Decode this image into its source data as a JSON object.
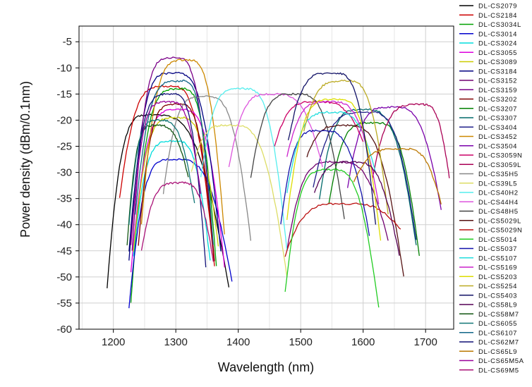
{
  "chart_data": {
    "type": "line",
    "title": "",
    "xlabel": "Wavelength (nm)",
    "ylabel": "Power density (dBm/0.1nm)",
    "xlim": [
      1145,
      1745
    ],
    "ylim": [
      -60,
      -2
    ],
    "xticks": [
      1200,
      1300,
      1400,
      1500,
      1600,
      1700
    ],
    "yticks": [
      -5,
      -10,
      -15,
      -20,
      -25,
      -30,
      -35,
      -40,
      -45,
      -50,
      -55,
      -60
    ],
    "grid": true,
    "legend_position": "right",
    "series": [
      {
        "name": "DL-CS2079",
        "color": "#000000",
        "peak_x": 1265,
        "peak_y": -19,
        "start_x": 1190,
        "start_y": -52,
        "end_x": 1385,
        "end_y": -52
      },
      {
        "name": "DL-CS2184",
        "color": "#cc0000",
        "peak_x": 1292,
        "peak_y": -13.5,
        "start_x": 1210,
        "start_y": -35,
        "end_x": 1362,
        "end_y": -48
      },
      {
        "name": "DL-CS3034L",
        "color": "#00a000",
        "peak_x": 1310,
        "peak_y": -14,
        "start_x": 1228,
        "start_y": -55,
        "end_x": 1365,
        "end_y": -48
      },
      {
        "name": "DL-CS3014",
        "color": "#0000cc",
        "peak_x": 1302,
        "peak_y": -27.5,
        "start_x": 1225,
        "start_y": -56,
        "end_x": 1390,
        "end_y": -51
      },
      {
        "name": "DL-CS3024",
        "color": "#00dddd",
        "peak_x": 1300,
        "peak_y": -24,
        "start_x": 1232,
        "start_y": -46,
        "end_x": 1355,
        "end_y": -47
      },
      {
        "name": "DL-CS3055",
        "color": "#dd00dd",
        "peak_x": 1310,
        "peak_y": -18,
        "start_x": 1228,
        "start_y": -49,
        "end_x": 1378,
        "end_y": -48
      },
      {
        "name": "DL-CS3089",
        "color": "#cccc00",
        "peak_x": 1305,
        "peak_y": -19.5,
        "start_x": 1232,
        "start_y": -45,
        "end_x": 1368,
        "end_y": -44
      },
      {
        "name": "DL-CS3184",
        "color": "#000080",
        "peak_x": 1300,
        "peak_y": -11,
        "start_x": 1225,
        "start_y": -47,
        "end_x": 1372,
        "end_y": -45
      },
      {
        "name": "DL-CS3152",
        "color": "#700070",
        "peak_x": 1560,
        "peak_y": -28,
        "start_x": 1478,
        "start_y": -45,
        "end_x": 1640,
        "end_y": -43
      },
      {
        "name": "DL-CS3159",
        "color": "#7a0088",
        "peak_x": 1300,
        "peak_y": -8,
        "start_x": 1230,
        "start_y": -45,
        "end_x": 1360,
        "end_y": -45
      },
      {
        "name": "DL-CS3202",
        "color": "#800000",
        "peak_x": 1305,
        "peak_y": -17,
        "start_x": 1240,
        "start_y": -44,
        "end_x": 1362,
        "end_y": -47
      },
      {
        "name": "DL-CS3207",
        "color": "#008000",
        "peak_x": 1620,
        "peak_y": -20.5,
        "start_x": 1545,
        "start_y": -36,
        "end_x": 1690,
        "end_y": -46
      },
      {
        "name": "DL-CS3307",
        "color": "#006a6a",
        "peak_x": 1605,
        "peak_y": -18,
        "start_x": 1530,
        "start_y": -35,
        "end_x": 1685,
        "end_y": -44
      },
      {
        "name": "DL-CS3404",
        "color": "#20208a",
        "peak_x": 1610,
        "peak_y": -18.5,
        "start_x": 1520,
        "start_y": -33,
        "end_x": 1685,
        "end_y": -43
      },
      {
        "name": "DL-CS3452",
        "color": "#cc8800",
        "peak_x": 1320,
        "peak_y": -8.5,
        "start_x": 1245,
        "start_y": -40,
        "end_x": 1378,
        "end_y": -42
      },
      {
        "name": "DL-CS3504",
        "color": "#7a00aa",
        "peak_x": 1650,
        "peak_y": -17.5,
        "start_x": 1575,
        "start_y": -33,
        "end_x": 1725,
        "end_y": -37
      },
      {
        "name": "DL-CS3059N",
        "color": "#cc0066",
        "peak_x": 1530,
        "peak_y": -16.5,
        "start_x": 1458,
        "start_y": -25,
        "end_x": 1600,
        "end_y": -24
      },
      {
        "name": "DL-CS3059L",
        "color": "#aa0055",
        "peak_x": 1695,
        "peak_y": -17,
        "start_x": 1615,
        "start_y": -31,
        "end_x": 1738,
        "end_y": -31
      },
      {
        "name": "DL-CS35H5",
        "color": "#888888",
        "peak_x": 1350,
        "peak_y": -15.5,
        "start_x": 1280,
        "start_y": -34,
        "end_x": 1420,
        "end_y": -43
      },
      {
        "name": "DL-CS39L5",
        "color": "#dddd66",
        "peak_x": 1390,
        "peak_y": -21,
        "start_x": 1325,
        "start_y": -30,
        "end_x": 1478,
        "end_y": -50
      },
      {
        "name": "DL-CS40H2",
        "color": "#55eeee",
        "peak_x": 1410,
        "peak_y": -14,
        "start_x": 1340,
        "start_y": -31,
        "end_x": 1478,
        "end_y": -45
      },
      {
        "name": "DL-CS44H4",
        "color": "#dd55dd",
        "peak_x": 1460,
        "peak_y": -15,
        "start_x": 1385,
        "start_y": -29,
        "end_x": 1535,
        "end_y": -29
      },
      {
        "name": "DL-CS48H5",
        "color": "#444444",
        "peak_x": 1495,
        "peak_y": -15,
        "start_x": 1420,
        "start_y": -31,
        "end_x": 1570,
        "end_y": -39
      },
      {
        "name": "DL-CS5029L",
        "color": "#551111",
        "peak_x": 1575,
        "peak_y": -21,
        "start_x": 1510,
        "start_y": -27,
        "end_x": 1665,
        "end_y": -50
      },
      {
        "name": "DL-CS5029N",
        "color": "#bb1111",
        "peak_x": 1575,
        "peak_y": -36,
        "start_x": 1475,
        "start_y": -46,
        "end_x": 1660,
        "end_y": -41
      },
      {
        "name": "DL-CS5014",
        "color": "#22cc22",
        "peak_x": 1550,
        "peak_y": -29.5,
        "start_x": 1475,
        "start_y": -53,
        "end_x": 1625,
        "end_y": -56
      },
      {
        "name": "DL-CS5037",
        "color": "#1111aa",
        "peak_x": 1535,
        "peak_y": -22,
        "start_x": 1468,
        "start_y": -40,
        "end_x": 1610,
        "end_y": -42
      },
      {
        "name": "DL-CS5107",
        "color": "#22dddd",
        "peak_x": 1555,
        "peak_y": -18.5,
        "start_x": 1478,
        "start_y": -34,
        "end_x": 1620,
        "end_y": -30
      },
      {
        "name": "DL-CS5169",
        "color": "#cc22cc",
        "peak_x": 1550,
        "peak_y": -16.5,
        "start_x": 1478,
        "start_y": -27,
        "end_x": 1625,
        "end_y": -36
      },
      {
        "name": "DL-CS5203",
        "color": "#dddd00",
        "peak_x": 1560,
        "peak_y": -16,
        "start_x": 1478,
        "start_y": -39,
        "end_x": 1628,
        "end_y": -43
      },
      {
        "name": "DL-CS5254",
        "color": "#bbaa22",
        "peak_x": 1575,
        "peak_y": -12.5,
        "start_x": 1505,
        "start_y": -22,
        "end_x": 1640,
        "end_y": -38
      },
      {
        "name": "DL-CS5403",
        "color": "#111166",
        "peak_x": 1555,
        "peak_y": -11,
        "start_x": 1480,
        "start_y": -24,
        "end_x": 1620,
        "end_y": -40
      },
      {
        "name": "DL-CS58L9",
        "color": "#550055",
        "peak_x": 1585,
        "peak_y": -28,
        "start_x": 1522,
        "start_y": -34,
        "end_x": 1658,
        "end_y": -46
      },
      {
        "name": "DL-CS58M7",
        "color": "#115511",
        "peak_x": 1270,
        "peak_y": -21,
        "start_x": 1222,
        "start_y": -44,
        "end_x": 1320,
        "end_y": -31
      },
      {
        "name": "DL-CS6055",
        "color": "#117777",
        "peak_x": 1275,
        "peak_y": -20,
        "start_x": 1225,
        "start_y": -40,
        "end_x": 1330,
        "end_y": -36
      },
      {
        "name": "DL-CS6107",
        "color": "#116688",
        "peak_x": 1310,
        "peak_y": -12.5,
        "start_x": 1235,
        "start_y": -38,
        "end_x": 1360,
        "end_y": -44
      },
      {
        "name": "DL-CS62M7",
        "color": "#111177",
        "peak_x": 1295,
        "peak_y": -15,
        "start_x": 1225,
        "start_y": -45,
        "end_x": 1348,
        "end_y": -48
      },
      {
        "name": "DL-CS65L9",
        "color": "#bb7700",
        "peak_x": 1665,
        "peak_y": -25.5,
        "start_x": 1585,
        "start_y": -32,
        "end_x": 1725,
        "end_y": -36
      },
      {
        "name": "DL-CS65M5A",
        "color": "#990099",
        "peak_x": 1290,
        "peak_y": -16.5,
        "start_x": 1228,
        "start_y": -44,
        "end_x": 1340,
        "end_y": -34
      },
      {
        "name": "DL-CS69M5",
        "color": "#aa1177",
        "peak_x": 1310,
        "peak_y": -32,
        "start_x": 1245,
        "start_y": -45,
        "end_x": 1360,
        "end_y": -47
      }
    ]
  }
}
